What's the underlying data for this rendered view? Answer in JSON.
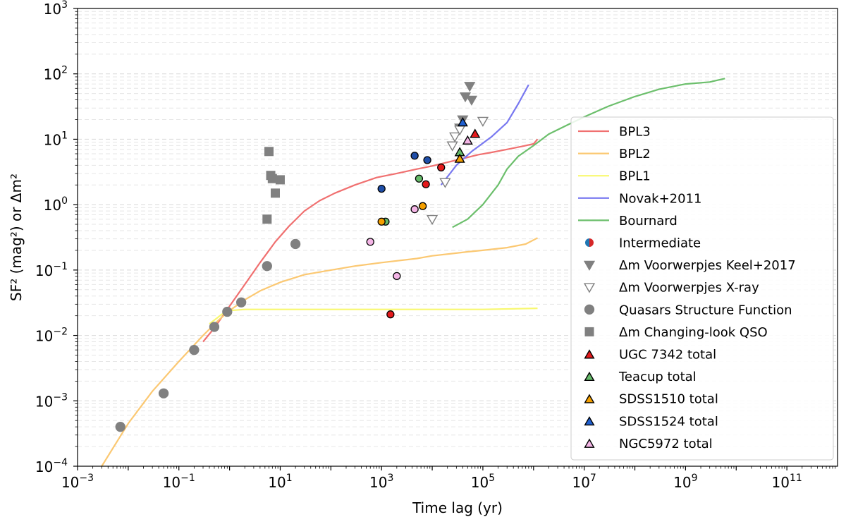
{
  "chart_data": {
    "type": "scatter",
    "xscale": "log",
    "yscale": "log",
    "xlabel": "Time lag (yr)",
    "ylabel": "SF² (mag²) or Δm²",
    "xlim": [
      0.001,
      1000000000000.0
    ],
    "ylim": [
      0.0001,
      1000
    ],
    "x_ticks": [
      {
        "exp": -3,
        "label_base": "10",
        "label_exp": "−3"
      },
      {
        "exp": -1,
        "label_base": "10",
        "label_exp": "−1"
      },
      {
        "exp": 1,
        "label_base": "10",
        "label_exp": "1"
      },
      {
        "exp": 3,
        "label_base": "10",
        "label_exp": "3"
      },
      {
        "exp": 5,
        "label_base": "10",
        "label_exp": "5"
      },
      {
        "exp": 7,
        "label_base": "10",
        "label_exp": "7"
      },
      {
        "exp": 9,
        "label_base": "10",
        "label_exp": "9"
      },
      {
        "exp": 11,
        "label_base": "10",
        "label_exp": "11"
      }
    ],
    "y_ticks": [
      {
        "exp": -4,
        "label_base": "10",
        "label_exp": "−4"
      },
      {
        "exp": -3,
        "label_base": "10",
        "label_exp": "−3"
      },
      {
        "exp": -2,
        "label_base": "10",
        "label_exp": "−2"
      },
      {
        "exp": -1,
        "label_base": "10",
        "label_exp": "−1"
      },
      {
        "exp": 0,
        "label_base": "10",
        "label_exp": "0"
      },
      {
        "exp": 1,
        "label_base": "10",
        "label_exp": "1"
      },
      {
        "exp": 2,
        "label_base": "10",
        "label_exp": "2"
      },
      {
        "exp": 3,
        "label_base": "10",
        "label_exp": "3"
      }
    ],
    "lines": [
      {
        "name": "BPL3",
        "color": "#f07070",
        "points": [
          [
            0.3,
            0.008
          ],
          [
            0.5,
            0.013
          ],
          [
            1,
            0.028
          ],
          [
            2,
            0.06
          ],
          [
            4,
            0.13
          ],
          [
            8,
            0.27
          ],
          [
            15,
            0.47
          ],
          [
            30,
            0.8
          ],
          [
            60,
            1.15
          ],
          [
            120,
            1.5
          ],
          [
            300,
            2.0
          ],
          [
            800,
            2.6
          ],
          [
            2000,
            3.0
          ],
          [
            5000,
            3.5
          ],
          [
            10000,
            3.9
          ],
          [
            30000,
            4.8
          ],
          [
            80000,
            5.8
          ],
          [
            150000,
            6.3
          ],
          [
            300000,
            7.0
          ],
          [
            600000,
            7.8
          ],
          [
            1000000,
            8.5
          ],
          [
            1200000,
            10
          ]
        ]
      },
      {
        "name": "BPL2",
        "color": "#fbc872",
        "points": [
          [
            0.003,
            0.0001
          ],
          [
            0.01,
            0.00045
          ],
          [
            0.03,
            0.0014
          ],
          [
            0.1,
            0.004
          ],
          [
            0.3,
            0.01
          ],
          [
            0.6,
            0.017
          ],
          [
            1,
            0.024
          ],
          [
            2,
            0.035
          ],
          [
            4,
            0.048
          ],
          [
            10,
            0.065
          ],
          [
            30,
            0.085
          ],
          [
            100,
            0.1
          ],
          [
            300,
            0.115
          ],
          [
            1000,
            0.13
          ],
          [
            5000,
            0.15
          ],
          [
            10000,
            0.165
          ],
          [
            50000,
            0.19
          ],
          [
            100000,
            0.2
          ],
          [
            300000,
            0.22
          ],
          [
            700000,
            0.25
          ],
          [
            1200000,
            0.31
          ]
        ]
      },
      {
        "name": "BPL1",
        "color": "#f8f870",
        "points": [
          [
            0.4,
            0.015
          ],
          [
            0.7,
            0.021
          ],
          [
            1,
            0.024
          ],
          [
            2,
            0.025
          ],
          [
            10,
            0.025
          ],
          [
            100,
            0.025
          ],
          [
            1000,
            0.025
          ],
          [
            10000,
            0.025
          ],
          [
            100000,
            0.025
          ],
          [
            1200000,
            0.026
          ]
        ]
      },
      {
        "name": "Novak+2011",
        "color": "#7878f0",
        "points": [
          [
            15000,
            2.0
          ],
          [
            30000,
            4.0
          ],
          [
            60000,
            6.5
          ],
          [
            150000,
            11
          ],
          [
            300000,
            18
          ],
          [
            500000,
            35
          ],
          [
            800000,
            68
          ]
        ]
      },
      {
        "name": "Bournard",
        "color": "#6cbf6c",
        "points": [
          [
            25000,
            0.45
          ],
          [
            50000,
            0.6
          ],
          [
            100000,
            1.0
          ],
          [
            200000,
            2.0
          ],
          [
            300000,
            3.5
          ],
          [
            500000,
            5.5
          ],
          [
            1000000,
            8
          ],
          [
            2000000,
            12
          ],
          [
            5000000,
            17
          ],
          [
            10000000,
            22
          ],
          [
            30000000,
            32
          ],
          [
            100000000,
            45
          ],
          [
            300000000,
            58
          ],
          [
            1000000000,
            70
          ],
          [
            3000000000,
            75
          ],
          [
            6000000000,
            85
          ]
        ]
      }
    ],
    "series": [
      {
        "name": "Intermediate",
        "marker": "circle",
        "color": "#1f4ea8",
        "edge": "#000000",
        "points": [
          [
            1000,
            1.75
          ],
          [
            4500,
            5.6
          ],
          [
            8000,
            4.8
          ]
        ]
      },
      {
        "name": "Δm Voorwerpjes Keel+2017",
        "marker": "triangle-down",
        "fill": "#808080",
        "edge": "#808080",
        "points": [
          [
            35000,
            15
          ],
          [
            40000,
            20
          ],
          [
            45000,
            45
          ],
          [
            55000,
            65
          ],
          [
            60000,
            40
          ]
        ]
      },
      {
        "name": "Δm Voorwerpjes X-ray",
        "marker": "triangle-down",
        "fill": "#ffffff",
        "edge": "#808080",
        "points": [
          [
            10000,
            0.6
          ],
          [
            18000,
            2.2
          ],
          [
            25000,
            8
          ],
          [
            28000,
            11
          ],
          [
            35000,
            14
          ],
          [
            100000,
            19
          ]
        ]
      },
      {
        "name": "Quasars Structure Function",
        "marker": "circle",
        "color": "#808080",
        "points": [
          [
            0.007,
            0.0004
          ],
          [
            0.05,
            0.0013
          ],
          [
            0.2,
            0.006
          ],
          [
            0.5,
            0.0135
          ],
          [
            0.9,
            0.023
          ],
          [
            1.7,
            0.032
          ],
          [
            5.5,
            0.115
          ],
          [
            20,
            0.25
          ]
        ]
      },
      {
        "name": "Δm Changing-look QSO",
        "marker": "square",
        "color": "#808080",
        "points": [
          [
            5.5,
            0.6
          ],
          [
            6,
            6.5
          ],
          [
            6.5,
            2.8
          ],
          [
            7,
            2.5
          ],
          [
            8,
            1.5
          ],
          [
            10,
            2.4
          ]
        ]
      },
      {
        "name": "UGC 7342 total",
        "marker": "mixed",
        "color": "#e41a1c",
        "points": [
          {
            "x": 1500,
            "y": 0.021,
            "m": "circle"
          },
          {
            "x": 7500,
            "y": 2.05,
            "m": "circle"
          },
          {
            "x": 15000,
            "y": 3.7,
            "m": "circle"
          },
          {
            "x": 70000,
            "y": 12,
            "m": "triangle"
          }
        ]
      },
      {
        "name": "Teacup total",
        "marker": "mixed",
        "color": "#66bb6a",
        "points": [
          {
            "x": 1200,
            "y": 0.55,
            "m": "circle"
          },
          {
            "x": 5500,
            "y": 2.5,
            "m": "circle"
          },
          {
            "x": 35000,
            "y": 6.3,
            "m": "triangle"
          }
        ]
      },
      {
        "name": "SDSS1510 total",
        "marker": "mixed",
        "color": "#f5a000",
        "points": [
          {
            "x": 1000,
            "y": 0.55,
            "m": "circle"
          },
          {
            "x": 6500,
            "y": 0.95,
            "m": "circle"
          },
          {
            "x": 35000,
            "y": 5,
            "m": "triangle"
          }
        ]
      },
      {
        "name": "SDSS1524 total",
        "marker": "mixed",
        "color": "#1f5fd0",
        "points": [
          {
            "x": 40000,
            "y": 18,
            "m": "triangle"
          }
        ]
      },
      {
        "name": "NGC5972 total",
        "marker": "mixed",
        "color": "#f4b5e6",
        "points": [
          {
            "x": 600,
            "y": 0.27,
            "m": "circle"
          },
          {
            "x": 2000,
            "y": 0.081,
            "m": "circle"
          },
          {
            "x": 4500,
            "y": 0.85,
            "m": "circle"
          },
          {
            "x": 50000,
            "y": 9.5,
            "m": "triangle"
          }
        ]
      }
    ],
    "legend": {
      "position": "right",
      "entries": [
        {
          "label": "BPL3",
          "kind": "line",
          "color": "#f07070"
        },
        {
          "label": "BPL2",
          "kind": "line",
          "color": "#fbc872"
        },
        {
          "label": "BPL1",
          "kind": "line",
          "color": "#f8f870"
        },
        {
          "label": "Novak+2011",
          "kind": "line",
          "color": "#7878f0"
        },
        {
          "label": "Bournard",
          "kind": "line",
          "color": "#6cbf6c"
        },
        {
          "label": "Intermediate",
          "kind": "circle-split",
          "color": "#1f77b4",
          "color2": "#d62728"
        },
        {
          "label": "Δm Voorwerpjes Keel+2017",
          "kind": "triangle-down",
          "fill": "#808080",
          "edge": "#808080"
        },
        {
          "label": "Δm Voorwerpjes X-ray",
          "kind": "triangle-down",
          "fill": "#ffffff",
          "edge": "#808080"
        },
        {
          "label": "Quasars Structure Function",
          "kind": "circle",
          "color": "#808080"
        },
        {
          "label": "Δm Changing-look QSO",
          "kind": "square",
          "color": "#808080"
        },
        {
          "label": "UGC 7342 total",
          "kind": "triangle",
          "color": "#e41a1c"
        },
        {
          "label": "Teacup total",
          "kind": "triangle",
          "color": "#66bb6a"
        },
        {
          "label": "SDSS1510 total",
          "kind": "triangle",
          "color": "#f5a000"
        },
        {
          "label": "SDSS1524 total",
          "kind": "triangle",
          "color": "#1f5fd0"
        },
        {
          "label": "NGC5972 total",
          "kind": "triangle",
          "color": "#f4b5e6"
        }
      ]
    }
  }
}
